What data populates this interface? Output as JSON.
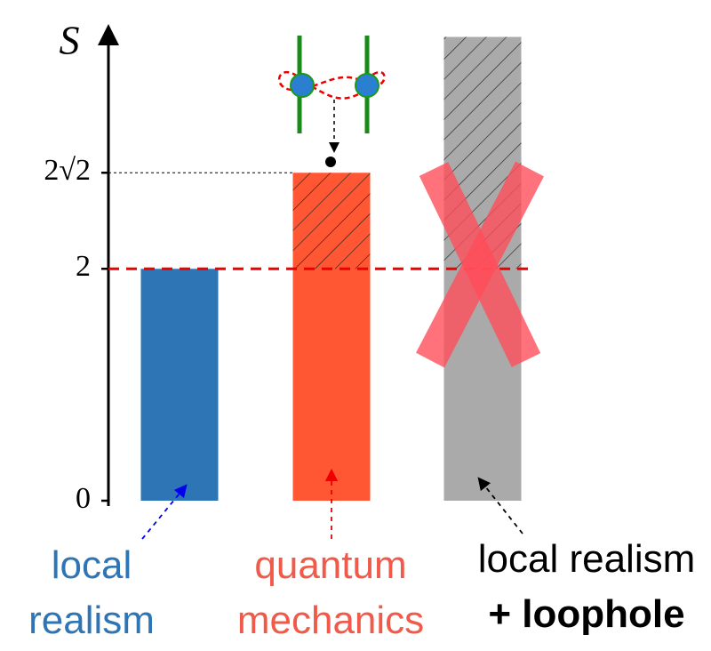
{
  "chart_data": {
    "type": "bar",
    "y_label": "S",
    "categories": [
      [
        "local",
        "realism"
      ],
      [
        "quantum",
        "mechanics"
      ],
      [
        "local realism",
        "+ loophole"
      ]
    ],
    "values": [
      2,
      2.8284,
      4
    ],
    "colors": [
      "#2e75b6",
      "#ff5733",
      "#aaaaaa"
    ],
    "label_colors": [
      "#2e75b6",
      "#f05a4a",
      "#000000"
    ],
    "ylim": [
      0,
      4.05
    ],
    "yticks": [
      0,
      2,
      {
        "value": 2.8284,
        "label": "2√2"
      }
    ],
    "reference_line": 2
  }
}
